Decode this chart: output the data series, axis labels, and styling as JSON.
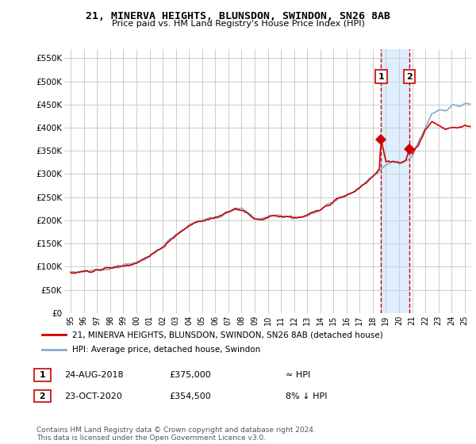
{
  "title": "21, MINERVA HEIGHTS, BLUNSDON, SWINDON, SN26 8AB",
  "subtitle": "Price paid vs. HM Land Registry's House Price Index (HPI)",
  "ylabel_ticks": [
    "£0",
    "£50K",
    "£100K",
    "£150K",
    "£200K",
    "£250K",
    "£300K",
    "£350K",
    "£400K",
    "£450K",
    "£500K",
    "£550K"
  ],
  "ytick_values": [
    0,
    50000,
    100000,
    150000,
    200000,
    250000,
    300000,
    350000,
    400000,
    450000,
    500000,
    550000
  ],
  "ylim": [
    0,
    570000
  ],
  "legend_line1": "21, MINERVA HEIGHTS, BLUNSDON, SWINDON, SN26 8AB (detached house)",
  "legend_line2": "HPI: Average price, detached house, Swindon",
  "annotation1_date": "24-AUG-2018",
  "annotation1_price": "£375,000",
  "annotation1_hpi": "≈ HPI",
  "annotation2_date": "23-OCT-2020",
  "annotation2_price": "£354,500",
  "annotation2_hpi": "8% ↓ HPI",
  "footer": "Contains HM Land Registry data © Crown copyright and database right 2024.\nThis data is licensed under the Open Government Licence v3.0.",
  "red_color": "#cc0000",
  "blue_color": "#88aacc",
  "highlight_color": "#ddeeff",
  "sale1_year": 2018.63,
  "sale1_price": 375000,
  "sale2_year": 2020.8,
  "sale2_price": 354500,
  "xlim_start": 1994.5,
  "xlim_end": 2025.5
}
